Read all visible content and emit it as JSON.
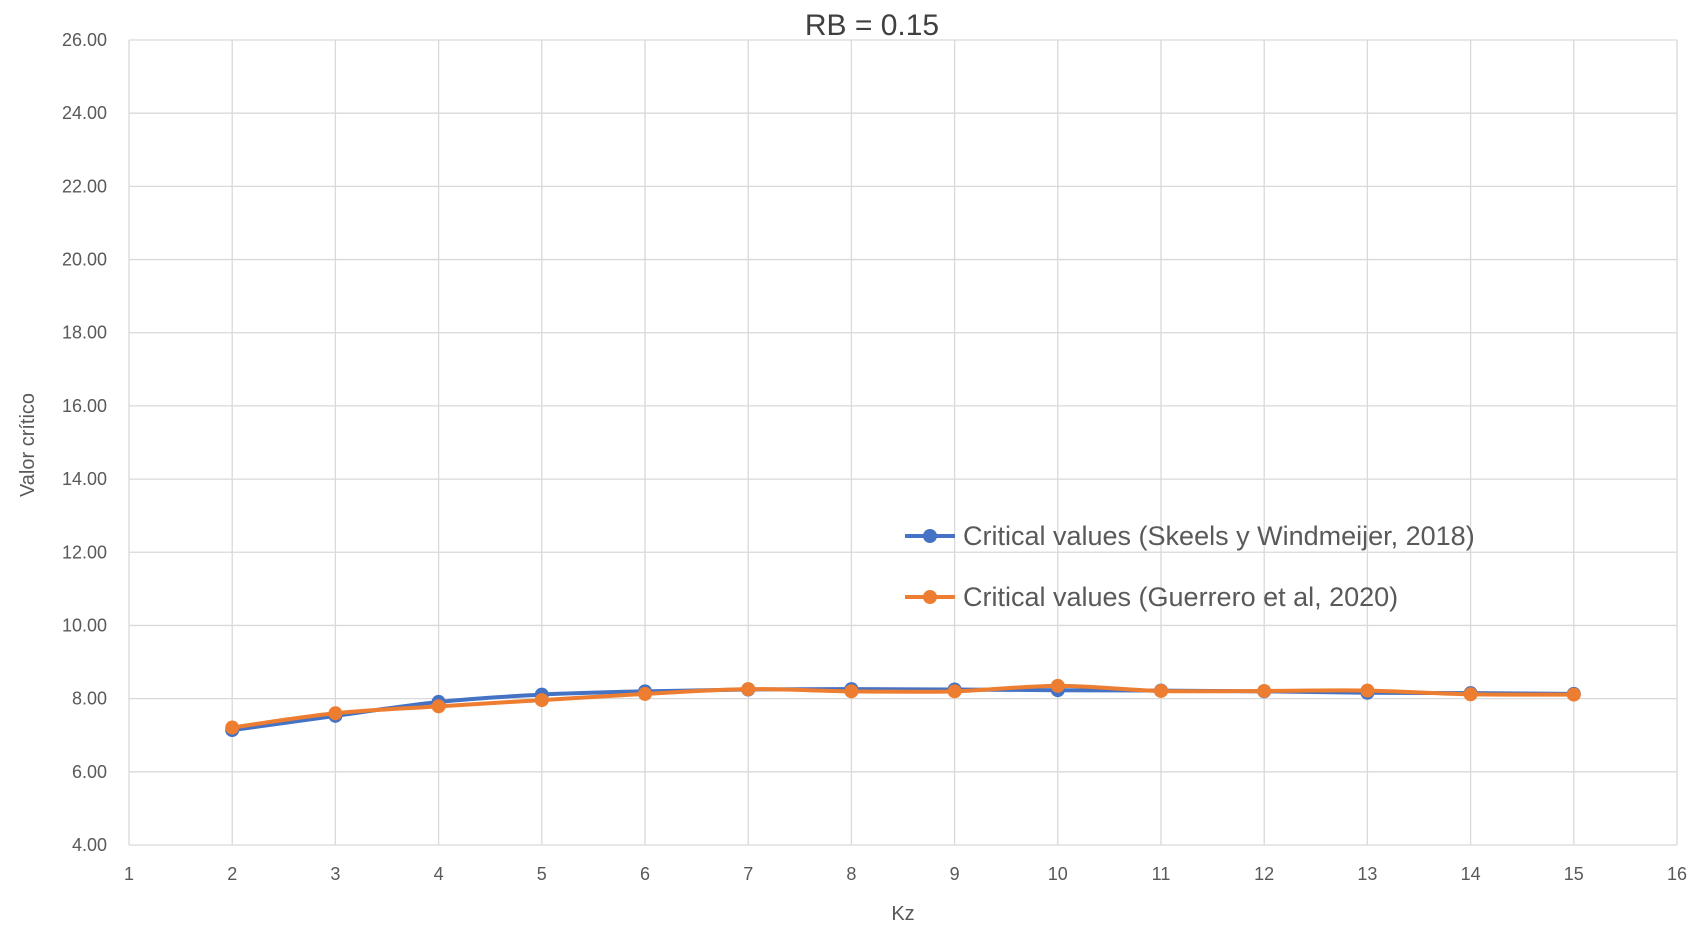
{
  "chart_data": {
    "type": "line",
    "title": "RB = 0.15",
    "xlabel": "Kz",
    "ylabel": "Valor crítico",
    "xlim": [
      1,
      16
    ],
    "ylim": [
      4.0,
      26.0
    ],
    "x_ticks": [
      1,
      2,
      3,
      4,
      5,
      6,
      7,
      8,
      9,
      10,
      11,
      12,
      13,
      14,
      15,
      16
    ],
    "y_ticks": [
      "4.00",
      "6.00",
      "8.00",
      "10.00",
      "12.00",
      "14.00",
      "16.00",
      "18.00",
      "20.00",
      "22.00",
      "24.00",
      "26.00"
    ],
    "grid": "both",
    "legend_position": "center-right",
    "x": [
      2,
      3,
      4,
      5,
      6,
      7,
      8,
      9,
      10,
      11,
      12,
      13,
      14,
      15
    ],
    "series": [
      {
        "name": "Critical values (Skeels y Windmeijer, 2018)",
        "color": "#4472C4",
        "values": [
          7.14,
          7.53,
          7.91,
          8.11,
          8.2,
          8.25,
          8.26,
          8.25,
          8.23,
          8.22,
          8.2,
          8.16,
          8.15,
          8.13
        ]
      },
      {
        "name": "Critical values (Guerrero et al, 2020)",
        "color": "#ED7D31",
        "values": [
          7.21,
          7.6,
          7.79,
          7.96,
          8.13,
          8.26,
          8.2,
          8.2,
          8.35,
          8.21,
          8.21,
          8.22,
          8.12,
          8.11
        ]
      }
    ]
  }
}
